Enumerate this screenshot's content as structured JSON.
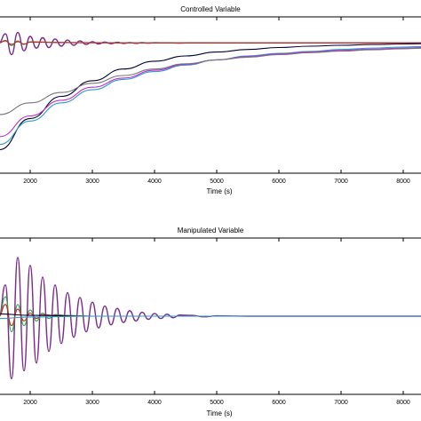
{
  "chart_data": [
    {
      "type": "line",
      "title": "Controlled Variable",
      "xlabel": "Time (s)",
      "xlim": [
        1500,
        8300
      ],
      "ylim": [
        -1.0,
        0.2
      ],
      "xticks": [
        2000,
        3000,
        4000,
        5000,
        6000,
        7000,
        8000
      ],
      "xtick_labels": [
        "2000",
        "3000",
        "4000",
        "5000",
        "6000",
        "7000",
        "8000"
      ],
      "series": [
        {
          "color": "#7b2a8a",
          "kind": "oscillating",
          "x": [
            1500,
            1600,
            1700,
            1800,
            1900,
            2000,
            2100,
            2200,
            2300,
            2400,
            2500,
            2600,
            2700,
            2800,
            2900,
            3000,
            3100,
            3200,
            3300,
            3400,
            3500,
            3600,
            3700,
            3800,
            3900,
            4000,
            4200,
            4400,
            4600,
            5000,
            6000,
            7000,
            8300
          ],
          "y": [
            0.0,
            0.07,
            -0.09,
            0.08,
            -0.06,
            0.05,
            -0.04,
            0.04,
            -0.035,
            0.03,
            -0.025,
            0.022,
            -0.018,
            0.015,
            -0.012,
            0.01,
            -0.008,
            0.007,
            -0.006,
            0.005,
            -0.004,
            0.003,
            -0.003,
            0.002,
            -0.002,
            0.0015,
            0.001,
            -0.001,
            0.0008,
            0.0,
            0.0,
            0.0,
            0.0
          ]
        },
        {
          "color": "#2aa84a",
          "kind": "oscillating",
          "x": [
            1500,
            1600,
            1700,
            1800,
            1900,
            2000,
            2200,
            2400,
            2600,
            2800,
            3000,
            3500,
            4000,
            5000,
            6000,
            7000,
            8300
          ],
          "y": [
            0.0,
            0.02,
            -0.02,
            0.015,
            -0.012,
            0.01,
            0.008,
            0.005,
            0.004,
            0.003,
            0.002,
            0.001,
            0.0,
            0.0,
            0.0,
            0.0,
            0.0
          ]
        },
        {
          "color": "#d02020",
          "kind": "oscillating",
          "x": [
            1500,
            1600,
            1700,
            1800,
            1900,
            2000,
            2200,
            2400,
            2600,
            2800,
            3000,
            3500,
            4000,
            5000,
            6000,
            7000,
            8300
          ],
          "y": [
            0.0,
            0.015,
            -0.012,
            0.01,
            -0.008,
            0.006,
            0.005,
            0.003,
            0.002,
            0.0015,
            0.001,
            0.0,
            0.0,
            0.0,
            0.0,
            0.0,
            0.0
          ]
        },
        {
          "color": "#000033",
          "kind": "slow-rise",
          "x": [
            1500,
            2000,
            2500,
            3000,
            3500,
            4000,
            4500,
            5000,
            5500,
            6000,
            6500,
            7000,
            7500,
            8000,
            8300
          ],
          "y": [
            -0.82,
            -0.58,
            -0.41,
            -0.29,
            -0.2,
            -0.14,
            -0.1,
            -0.07,
            -0.05,
            -0.035,
            -0.025,
            -0.018,
            -0.012,
            -0.008,
            -0.006
          ]
        },
        {
          "color": "#2a9ad0",
          "kind": "slow-rise",
          "x": [
            1500,
            2000,
            2500,
            3000,
            3500,
            4000,
            4500,
            5000,
            5500,
            6000,
            6500,
            7000,
            7500,
            8000,
            8300
          ],
          "y": [
            -0.78,
            -0.6,
            -0.46,
            -0.36,
            -0.28,
            -0.22,
            -0.17,
            -0.13,
            -0.1,
            -0.08,
            -0.065,
            -0.05,
            -0.04,
            -0.032,
            -0.028
          ]
        },
        {
          "color": "#c02ad0",
          "kind": "slow-rise",
          "x": [
            1500,
            2000,
            2500,
            3000,
            3500,
            4000,
            4500,
            5000,
            5500,
            6000,
            6500,
            7000,
            7500,
            8000,
            8300
          ],
          "y": [
            -0.72,
            -0.56,
            -0.44,
            -0.34,
            -0.27,
            -0.21,
            -0.165,
            -0.13,
            -0.105,
            -0.085,
            -0.07,
            -0.058,
            -0.048,
            -0.04,
            -0.036
          ]
        },
        {
          "color": "#777777",
          "kind": "slow-rise",
          "x": [
            1500,
            2000,
            2500,
            3000,
            3500,
            4000,
            4500,
            5000,
            5500,
            6000,
            6500,
            7000,
            7500,
            8000,
            8300
          ],
          "y": [
            -0.55,
            -0.46,
            -0.38,
            -0.31,
            -0.25,
            -0.2,
            -0.16,
            -0.13,
            -0.11,
            -0.09,
            -0.075,
            -0.063,
            -0.053,
            -0.045,
            -0.041
          ]
        }
      ]
    },
    {
      "type": "line",
      "title": "Manipulated Variable",
      "xlabel": "Time (s)",
      "xlim": [
        1500,
        8300
      ],
      "ylim": [
        -1.0,
        1.0
      ],
      "xticks": [
        2000,
        3000,
        4000,
        5000,
        6000,
        7000,
        8000
      ],
      "xtick_labels": [
        "2000",
        "3000",
        "4000",
        "5000",
        "6000",
        "7000",
        "8000"
      ],
      "series": [
        {
          "color": "#7b2a8a",
          "kind": "oscillating",
          "x": [
            1500,
            1600,
            1700,
            1800,
            1900,
            2000,
            2100,
            2200,
            2300,
            2400,
            2500,
            2600,
            2700,
            2800,
            2900,
            3000,
            3100,
            3200,
            3300,
            3400,
            3500,
            3600,
            3700,
            3800,
            3900,
            4000,
            4100,
            4200,
            4300,
            4400,
            4600,
            4800,
            5000,
            5500,
            6000,
            7000,
            8300
          ],
          "y": [
            0.0,
            0.4,
            -0.8,
            0.75,
            -0.7,
            0.65,
            -0.6,
            0.5,
            -0.45,
            0.4,
            -0.35,
            0.3,
            -0.27,
            0.24,
            -0.2,
            0.18,
            -0.15,
            0.13,
            -0.11,
            0.1,
            -0.08,
            0.07,
            -0.06,
            0.05,
            -0.04,
            0.035,
            -0.03,
            0.025,
            -0.02,
            0.015,
            0.01,
            -0.008,
            0.005,
            0.0,
            0.0,
            0.0,
            0.0
          ]
        },
        {
          "color": "#2aa84a",
          "kind": "oscillating",
          "x": [
            1500,
            1600,
            1700,
            1800,
            1900,
            2000,
            2100,
            2200,
            2300,
            2400,
            2600,
            2800,
            3000,
            3500,
            4000,
            5000,
            6000,
            7000,
            8300
          ],
          "y": [
            0.0,
            0.25,
            -0.2,
            0.15,
            -0.12,
            0.08,
            -0.06,
            0.04,
            -0.03,
            0.02,
            0.01,
            0.005,
            0.0,
            0.0,
            0.0,
            0.0,
            0.0,
            0.0,
            0.0
          ]
        },
        {
          "color": "#d02020",
          "kind": "oscillating",
          "x": [
            1500,
            1600,
            1700,
            1800,
            1900,
            2000,
            2100,
            2200,
            2400,
            2600,
            2800,
            3000,
            3500,
            4000,
            5000,
            6000,
            7000,
            8300
          ],
          "y": [
            0.0,
            0.15,
            -0.12,
            0.09,
            -0.06,
            0.04,
            -0.03,
            0.02,
            0.01,
            0.005,
            0.0,
            0.0,
            0.0,
            0.0,
            0.0,
            0.0,
            0.0,
            0.0
          ]
        },
        {
          "color": "#000033",
          "kind": "flat",
          "x": [
            1500,
            2000,
            3000,
            4000,
            5000,
            6000,
            7000,
            8300
          ],
          "y": [
            0.03,
            0.01,
            0.0,
            0.0,
            0.0,
            0.0,
            0.0,
            0.0
          ]
        },
        {
          "color": "#2a9ad0",
          "kind": "flat",
          "x": [
            1500,
            2000,
            3000,
            4000,
            5000,
            6000,
            7000,
            8300
          ],
          "y": [
            -0.03,
            -0.01,
            0.0,
            0.0,
            0.0,
            0.0,
            0.0,
            0.0
          ]
        }
      ]
    }
  ]
}
